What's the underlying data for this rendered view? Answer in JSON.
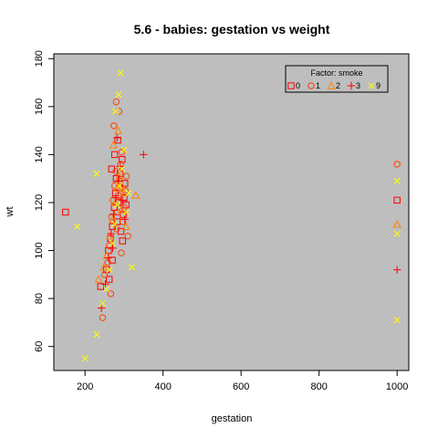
{
  "chart_data": {
    "type": "scatter",
    "title": "5.6 - babies: gestation vs weight",
    "xlabel": "gestation",
    "ylabel": "wt",
    "xlim": [
      120,
      1030
    ],
    "ylim": [
      50,
      182
    ],
    "xticks": [
      200,
      400,
      600,
      800,
      1000
    ],
    "yticks": [
      60,
      80,
      100,
      120,
      140,
      160,
      180
    ],
    "background": "#bebebe",
    "legend": {
      "title": "Factor: smoke",
      "placement": "top-right",
      "levels": [
        "0",
        "1",
        "2",
        "3",
        "9"
      ]
    },
    "series": [
      {
        "name": "0",
        "marker": "square",
        "color": "#ff0000",
        "points": [
          [
            150,
            116
          ],
          [
            240,
            85
          ],
          [
            255,
            92
          ],
          [
            260,
            100
          ],
          [
            265,
            105
          ],
          [
            270,
            110
          ],
          [
            275,
            118
          ],
          [
            278,
            124
          ],
          [
            280,
            130
          ],
          [
            282,
            112
          ],
          [
            285,
            120
          ],
          [
            288,
            126
          ],
          [
            290,
            132
          ],
          [
            292,
            108
          ],
          [
            295,
            138
          ],
          [
            298,
            115
          ],
          [
            300,
            122
          ],
          [
            302,
            128
          ],
          [
            305,
            119
          ],
          [
            270,
            96
          ],
          [
            262,
            88
          ],
          [
            276,
            140
          ],
          [
            284,
            146
          ],
          [
            296,
            104
          ],
          [
            268,
            134
          ],
          [
            1000,
            121
          ]
        ]
      },
      {
        "name": "1",
        "marker": "circle",
        "color": "#ff4000",
        "points": [
          [
            245,
            72
          ],
          [
            250,
            90
          ],
          [
            258,
            95
          ],
          [
            262,
            102
          ],
          [
            268,
            114
          ],
          [
            272,
            121
          ],
          [
            276,
            127
          ],
          [
            279,
            133
          ],
          [
            281,
            109
          ],
          [
            283,
            116
          ],
          [
            286,
            123
          ],
          [
            289,
            129
          ],
          [
            291,
            136
          ],
          [
            294,
            141
          ],
          [
            297,
            112
          ],
          [
            300,
            118
          ],
          [
            303,
            125
          ],
          [
            306,
            131
          ],
          [
            310,
            106
          ],
          [
            274,
            152
          ],
          [
            287,
            158
          ],
          [
            293,
            99
          ],
          [
            266,
            82
          ],
          [
            280,
            162
          ],
          [
            1000,
            136
          ]
        ]
      },
      {
        "name": "2",
        "marker": "triangle",
        "color": "#ff8000",
        "points": [
          [
            235,
            88
          ],
          [
            248,
            93
          ],
          [
            256,
            98
          ],
          [
            264,
            106
          ],
          [
            271,
            113
          ],
          [
            277,
            120
          ],
          [
            283,
            126
          ],
          [
            288,
            131
          ],
          [
            293,
            117
          ],
          [
            299,
            124
          ],
          [
            305,
            110
          ],
          [
            273,
            144
          ],
          [
            285,
            150
          ],
          [
            295,
            127
          ],
          [
            330,
            123
          ],
          [
            1000,
            111
          ]
        ]
      },
      {
        "name": "3",
        "marker": "plus",
        "color": "#ff0000",
        "points": [
          [
            242,
            76
          ],
          [
            252,
            86
          ],
          [
            260,
            97
          ],
          [
            267,
            107
          ],
          [
            273,
            115
          ],
          [
            279,
            122
          ],
          [
            285,
            129
          ],
          [
            290,
            135
          ],
          [
            296,
            121
          ],
          [
            302,
            113
          ],
          [
            282,
            147
          ],
          [
            271,
            101
          ],
          [
            350,
            140
          ],
          [
            1000,
            92
          ]
        ]
      },
      {
        "name": "9",
        "marker": "x",
        "color": "#ffff00",
        "points": [
          [
            200,
            55
          ],
          [
            230,
            65
          ],
          [
            245,
            78
          ],
          [
            255,
            84
          ],
          [
            263,
            92
          ],
          [
            270,
            103
          ],
          [
            276,
            111
          ],
          [
            282,
            119
          ],
          [
            288,
            127
          ],
          [
            294,
            134
          ],
          [
            300,
            142
          ],
          [
            306,
            116
          ],
          [
            312,
            124
          ],
          [
            278,
            158
          ],
          [
            286,
            165
          ],
          [
            291,
            174
          ],
          [
            180,
            110
          ],
          [
            230,
            132
          ],
          [
            320,
            93
          ],
          [
            1000,
            71
          ],
          [
            1000,
            107
          ],
          [
            1000,
            129
          ]
        ]
      }
    ]
  }
}
